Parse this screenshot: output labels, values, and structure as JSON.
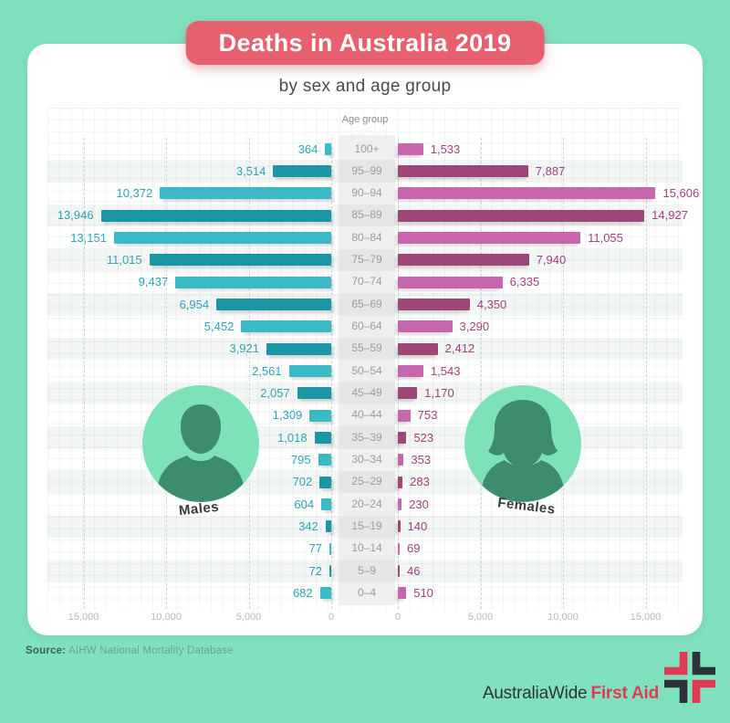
{
  "page": {
    "background": "#80e1bf"
  },
  "title": "Deaths in Australia 2019",
  "subtitle": "by sex and age group",
  "males_label": "Males",
  "females_label": "Females",
  "source": {
    "label": "Source:",
    "text": "AIHW National Mortality Database"
  },
  "logo": {
    "brand": "AustraliaWide",
    "product": "First Aid",
    "icon": "first-aid-cross-icon"
  },
  "icons": {
    "male_avatar": "male-silhouette-icon",
    "female_avatar": "female-silhouette-icon"
  },
  "colors": {
    "banner": "#e7606d",
    "card": "#ffffff",
    "male_light": "#3ab9c6",
    "male_dark": "#1b96a5",
    "female_light": "#c765ad",
    "female_dark": "#9d4678",
    "male_value_text": "#2aa5b6",
    "female_value_text": "#a2417a",
    "age_text": "#9c9c9c",
    "tick_text": "#b3bcba",
    "avatar_circle": "#7de2b8",
    "avatar_silhouette": "#3e8c6e",
    "logo_red": "#e23a52",
    "logo_dark": "#2c3237"
  },
  "chart_data": {
    "type": "bar",
    "variant": "population-pyramid",
    "title": "Deaths in Australia 2019",
    "subtitle": "by sex and age group",
    "center_axis_label": "Age group",
    "categories": [
      "100+",
      "95–99",
      "90–94",
      "85–89",
      "80–84",
      "75–79",
      "70–74",
      "65–69",
      "60–64",
      "55–59",
      "50–54",
      "45–49",
      "40–44",
      "35–39",
      "30–34",
      "25–29",
      "20–24",
      "15–19",
      "10–14",
      "5–9",
      "0–4"
    ],
    "series": [
      {
        "name": "Males",
        "side": "left",
        "values": [
          364,
          3514,
          10372,
          13946,
          13151,
          11015,
          9437,
          6954,
          5452,
          3921,
          2561,
          2057,
          1309,
          1018,
          795,
          702,
          604,
          342,
          77,
          72,
          682
        ]
      },
      {
        "name": "Females",
        "side": "right",
        "values": [
          1533,
          7887,
          15606,
          14927,
          11055,
          7940,
          6335,
          4350,
          3290,
          2412,
          1543,
          1170,
          753,
          523,
          353,
          283,
          230,
          140,
          69,
          46,
          510
        ]
      }
    ],
    "value_axis": {
      "min": 0,
      "max": 16500,
      "tick_interval": 5000,
      "tick_labels_left": [
        "15,000",
        "10,000",
        "5,000",
        "0"
      ],
      "tick_labels_right": [
        "0",
        "5,000",
        "10,000",
        "15,000"
      ]
    },
    "grid": "dashed-vertical",
    "row_striping": true,
    "legend_position": "none"
  }
}
